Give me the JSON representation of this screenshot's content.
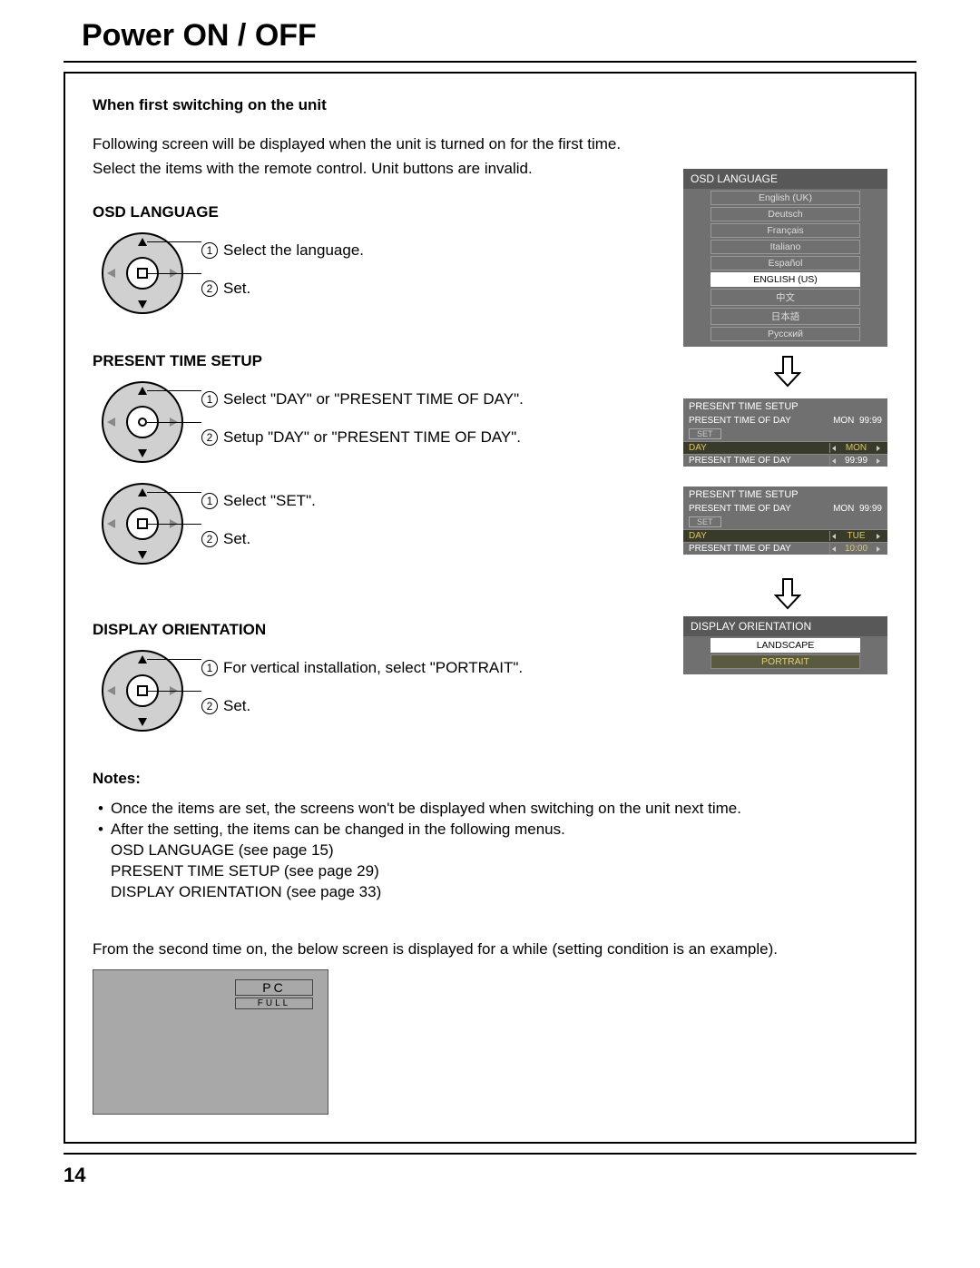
{
  "title": "Power ON / OFF",
  "intro_heading": "When first switching on the unit",
  "intro_text1": "Following screen will be displayed when the unit is turned on for the first time.",
  "intro_text2": "Select the items with the remote control. Unit buttons are invalid.",
  "osd": {
    "heading": "OSD LANGUAGE",
    "step1": "Select the language.",
    "step2": "Set.",
    "panel_title": "OSD LANGUAGE",
    "options": [
      "English (UK)",
      "Deutsch",
      "Français",
      "Italiano",
      "Español",
      "ENGLISH (US)",
      "中文",
      "日本語",
      "Русский"
    ],
    "selected_index": 5
  },
  "time": {
    "heading": "PRESENT TIME SETUP",
    "step1": "Select \"DAY\" or \"PRESENT TIME OF DAY\".",
    "step2": "Setup \"DAY\" or \"PRESENT TIME OF DAY\".",
    "step3": "Select \"SET\".",
    "step4": "Set.",
    "panel_title": "PRESENT TIME SETUP",
    "header_label": "PRESENT TIME OF DAY",
    "set_label": "SET",
    "day_label": "DAY",
    "pod_label": "PRESENT TIME OF DAY",
    "p1": {
      "day_header": "MON",
      "time_header": "99:99",
      "day_val": "MON",
      "time_val": "99:99"
    },
    "p2": {
      "day_header": "MON",
      "time_header": "99:99",
      "day_val": "TUE",
      "time_val": "10:00"
    }
  },
  "orientation": {
    "heading": "DISPLAY ORIENTATION",
    "step1": "For vertical installation, select \"PORTRAIT\".",
    "step2": "Set.",
    "panel_title": "DISPLAY ORIENTATION",
    "options": [
      "LANDSCAPE",
      "PORTRAIT"
    ],
    "selected_index": 0
  },
  "notes": {
    "heading": "Notes:",
    "n1": "Once the items are set, the screens won't be displayed when switching on the unit next time.",
    "n2": "After the setting, the items can be changed in the following menus.",
    "ref1": "OSD LANGUAGE (see page 15)",
    "ref2": "PRESENT TIME SETUP (see page 29)",
    "ref3": "DISPLAY ORIENTATION (see page 33)"
  },
  "second_time_text": "From the second time on, the below screen is displayed for a while (setting condition is an example).",
  "example": {
    "pc": "PC",
    "full": "FULL"
  },
  "page_number": "14",
  "colors": {
    "panel_bg": "#707070",
    "panel_head": "#585858",
    "highlight_bg": "#ffffff",
    "yellow_text": "#d8c860",
    "dial_fill": "#d0d0d0",
    "example_bg": "#a8a8a8"
  }
}
